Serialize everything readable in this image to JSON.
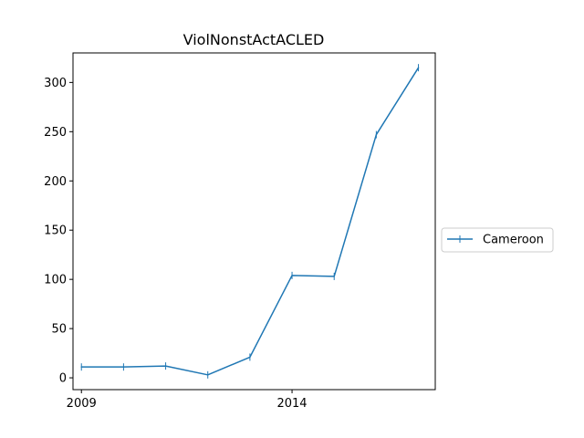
{
  "chart_data": {
    "type": "line",
    "title": "ViolNonstActACLED",
    "xlabel": "",
    "ylabel": "",
    "x": [
      2009,
      2010,
      2011,
      2012,
      2013,
      2014,
      2015,
      2016,
      2017
    ],
    "series": [
      {
        "name": "Cameroon",
        "color": "#1f77b4",
        "marker": "|",
        "values": [
          11,
          11,
          12,
          3,
          21,
          104,
          103,
          247,
          315
        ]
      }
    ],
    "xlim": [
      2008.8,
      2017.4
    ],
    "ylim": [
      -12,
      330
    ],
    "xticks": [
      2009,
      2014
    ],
    "xtick_labels": [
      "2009",
      "2014"
    ],
    "yticks": [
      0,
      50,
      100,
      150,
      200,
      250,
      300
    ],
    "ytick_labels": [
      "0",
      "50",
      "100",
      "150",
      "200",
      "250",
      "300"
    ],
    "grid": false,
    "legend_position": "outside-right"
  }
}
